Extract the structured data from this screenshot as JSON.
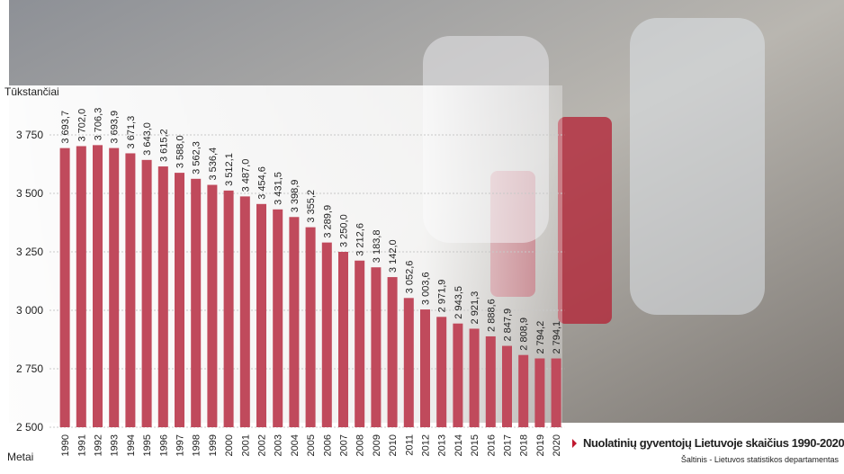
{
  "chart_data": {
    "type": "bar",
    "title": "Nuolatinių gyventojų Lietuvoje skaičius 1990-2020",
    "source": "Šaltinis - Lietuvos statistikos departamentas",
    "y_label": "Tūkstančiai",
    "x_label": "Metai",
    "categories": [
      "1990",
      "1991",
      "1992",
      "1993",
      "1994",
      "1995",
      "1996",
      "1997",
      "1998",
      "1999",
      "2000",
      "2001",
      "2002",
      "2003",
      "2004",
      "2005",
      "2006",
      "2007",
      "2008",
      "2009",
      "2010",
      "2011",
      "2012",
      "2013",
      "2014",
      "2015",
      "2016",
      "2017",
      "2018",
      "2019",
      "2020"
    ],
    "values": [
      3693.7,
      3702.0,
      3706.3,
      3693.9,
      3671.3,
      3643.0,
      3615.2,
      3588.0,
      3562.3,
      3536.4,
      3512.1,
      3487.0,
      3454.6,
      3431.5,
      3398.9,
      3355.2,
      3289.9,
      3250.0,
      3212.6,
      3183.8,
      3142.0,
      3052.6,
      3003.6,
      2971.9,
      2943.5,
      2921.3,
      2888.6,
      2847.9,
      2808.9,
      2794.2,
      2794.1
    ],
    "value_labels": [
      "3 693,7",
      "3 702,0",
      "3 706,3",
      "3 693,9",
      "3 671,3",
      "3 643,0",
      "3 615,2",
      "3 588,0",
      "3 562,3",
      "3 536,4",
      "3 512,1",
      "3 487,0",
      "3 454,6",
      "3 431,5",
      "3 398,9",
      "3 355,2",
      "3 289,9",
      "3 250,0",
      "3 212,6",
      "3 183,8",
      "3 142,0",
      "3 052,6",
      "3 003,6",
      "2 971,9",
      "2 943,5",
      "2 921,3",
      "2 888,6",
      "2 847,9",
      "2 808,9",
      "2 794,2",
      "2 794,1"
    ],
    "color": "#c04a5c",
    "ylim": [
      2500,
      3900
    ],
    "yticks": [
      {
        "value": 2500,
        "label": "2 500"
      },
      {
        "value": 2750,
        "label": "2 750"
      },
      {
        "value": 3000,
        "label": "3 000"
      },
      {
        "value": 3250,
        "label": "3 250"
      },
      {
        "value": 3500,
        "label": "3 500"
      },
      {
        "value": 3750,
        "label": "3 750"
      }
    ],
    "grid": true
  }
}
